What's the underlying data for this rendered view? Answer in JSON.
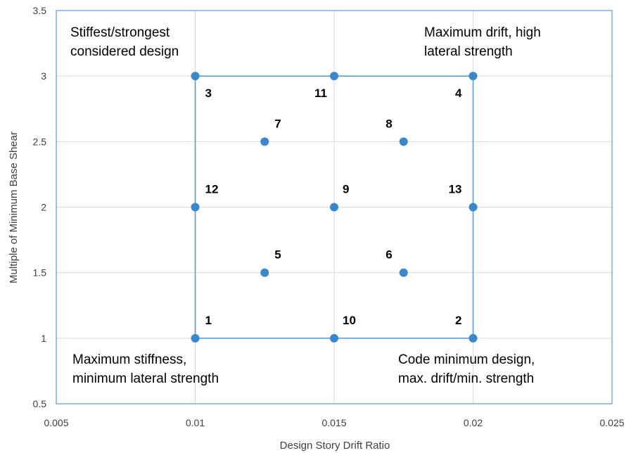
{
  "chart_data": {
    "type": "scatter",
    "xlabel": "Design Story Drift Ratio",
    "ylabel": "Multiple of Minimum Base Shear",
    "xlim": [
      0.005,
      0.025
    ],
    "ylim": [
      0.5,
      3.5
    ],
    "x_ticks": [
      "0.005",
      "0.01",
      "0.015",
      "0.02",
      "0.025"
    ],
    "y_ticks": [
      "0.5",
      "1",
      "1.5",
      "2",
      "2.5",
      "3",
      "3.5"
    ],
    "grid": true,
    "marker_color": "#3a87cc",
    "box_line_color": "#5b9bd5",
    "points": [
      {
        "label": "1",
        "x": 0.01,
        "y": 1.0
      },
      {
        "label": "2",
        "x": 0.02,
        "y": 1.0
      },
      {
        "label": "3",
        "x": 0.01,
        "y": 3.0
      },
      {
        "label": "4",
        "x": 0.02,
        "y": 3.0
      },
      {
        "label": "5",
        "x": 0.0125,
        "y": 1.5
      },
      {
        "label": "6",
        "x": 0.0175,
        "y": 1.5
      },
      {
        "label": "7",
        "x": 0.0125,
        "y": 2.5
      },
      {
        "label": "8",
        "x": 0.0175,
        "y": 2.5
      },
      {
        "label": "9",
        "x": 0.015,
        "y": 2.0
      },
      {
        "label": "10",
        "x": 0.015,
        "y": 1.0
      },
      {
        "label": "11",
        "x": 0.015,
        "y": 3.0
      },
      {
        "label": "12",
        "x": 0.01,
        "y": 2.0
      },
      {
        "label": "13",
        "x": 0.02,
        "y": 2.0
      }
    ],
    "annotations": [
      {
        "corner": "top-left",
        "lines": [
          "Stiffest/strongest",
          "considered design"
        ]
      },
      {
        "corner": "top-right",
        "lines": [
          "Maximum drift, high",
          "lateral strength"
        ]
      },
      {
        "corner": "bottom-left",
        "lines": [
          "Maximum stiffness,",
          "minimum lateral strength"
        ]
      },
      {
        "corner": "bottom-right",
        "lines": [
          "Code minimum design,",
          "max. drift/min. strength"
        ]
      }
    ]
  }
}
